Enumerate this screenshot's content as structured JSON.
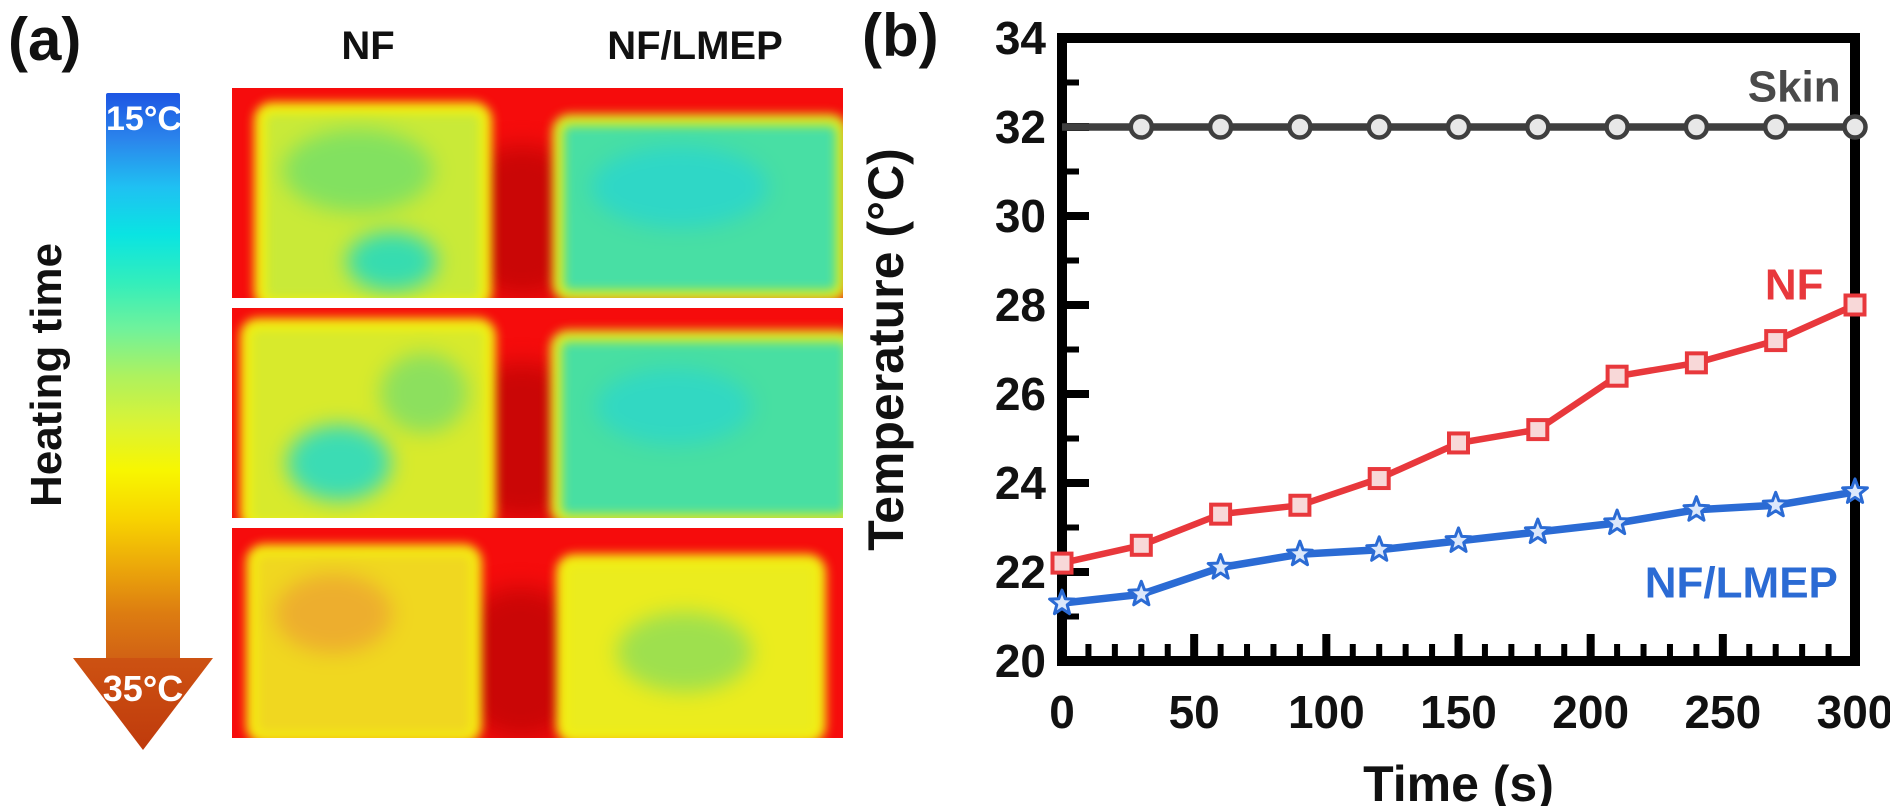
{
  "panel_a": {
    "label": "(a)",
    "column_titles": [
      "NF",
      "NF/LMEP"
    ],
    "colorbar": {
      "top_label": "15°C",
      "bottom_label": "35°C",
      "axis_label": "Heating time",
      "gradient": [
        "#1d55e3",
        "#2b86ec",
        "#1fc1f2",
        "#0ae4e2",
        "#32eebc",
        "#70f29b",
        "#aef25e",
        "#daf335",
        "#f8f600",
        "#f8d400",
        "#eca90a",
        "#dd7d11",
        "#d16114"
      ],
      "arrow_colors": [
        "#cd5212",
        "#bf3a0c"
      ]
    },
    "thermal_rows": [
      {
        "name": "heating-row-1",
        "background": "#f60c0c",
        "blob_color": "#c30505",
        "left": {
          "inner": "#c9ea38",
          "border": "#f2ee10",
          "spots": [
            {
              "color": "#82e160",
              "left": "8%",
              "top": "8%",
              "w": "70%",
              "h": "45%"
            },
            {
              "color": "#36dcb0",
              "left": "38%",
              "top": "64%",
              "w": "42%",
              "h": "32%"
            }
          ]
        },
        "right": {
          "inner": "#48dfa4",
          "border": "#d9ec22",
          "spots": [
            {
              "color": "#2fd7c6",
              "left": "10%",
              "top": "12%",
              "w": "65%",
              "h": "50%"
            }
          ]
        }
      },
      {
        "name": "heating-row-2",
        "background": "#f60c0c",
        "blob_color": "#c30505",
        "left": {
          "inner": "#d8ea2c",
          "border": "#f2ee10",
          "spots": [
            {
              "color": "#3bdcb4",
              "left": "15%",
              "top": "50%",
              "w": "45%",
              "h": "40%"
            },
            {
              "color": "#8ce05e",
              "left": "55%",
              "top": "12%",
              "w": "38%",
              "h": "42%"
            }
          ]
        },
        "right": {
          "inner": "#48dfa2",
          "border": "#dcec24",
          "spots": [
            {
              "color": "#32d8c2",
              "left": "12%",
              "top": "15%",
              "w": "55%",
              "h": "45%"
            }
          ]
        }
      },
      {
        "name": "heating-row-3",
        "background": "#f60c0c",
        "blob_color": "#c30505",
        "left": {
          "inner": "#f0d720",
          "border": "#f4ea12",
          "spots": [
            {
              "color": "#edae2e",
              "left": "8%",
              "top": "10%",
              "w": "55%",
              "h": "45%"
            }
          ]
        },
        "right": {
          "inner": "#ebec1e",
          "border": "#f2ee12",
          "spots": [
            {
              "color": "#9ee04e",
              "left": "20%",
              "top": "28%",
              "w": "55%",
              "h": "48%"
            }
          ]
        }
      }
    ]
  },
  "panel_b": {
    "label": "(b)"
  },
  "chart_data": {
    "type": "line",
    "title": "",
    "xlabel": "Time (s)",
    "ylabel": "Temperature (°C)",
    "xlim": [
      0,
      300
    ],
    "ylim": [
      20,
      34
    ],
    "x_major_ticks": [
      0,
      50,
      100,
      150,
      200,
      250,
      300
    ],
    "x_minor_step": 10,
    "y_major_ticks": [
      20,
      22,
      24,
      26,
      28,
      30,
      32,
      34
    ],
    "y_minor_step": 1,
    "grid": false,
    "legend_position": "inline-labels",
    "x": [
      0,
      30,
      60,
      90,
      120,
      150,
      180,
      210,
      240,
      270,
      300
    ],
    "series": [
      {
        "name": "Skin",
        "color": "#3f3f3f",
        "label_color": "#4a4a4a",
        "marker": "circle",
        "marker_fill": "#e8e8e8",
        "line_width": 7.5,
        "marker_start_index": 1,
        "values": [
          32,
          32,
          32,
          32,
          32,
          32,
          32,
          32,
          32,
          32,
          32
        ],
        "label_t": 277,
        "label_T": 32.9
      },
      {
        "name": "NF",
        "color": "#e8383c",
        "label_color": "#e8383c",
        "marker": "square",
        "marker_fill": "#f8d8d8",
        "line_width": 6.5,
        "marker_start_index": 0,
        "values": [
          22.2,
          22.6,
          23.3,
          23.5,
          24.1,
          24.9,
          25.2,
          26.4,
          26.7,
          27.2,
          28.0
        ],
        "label_t": 277,
        "label_T": 28.45
      },
      {
        "name": "NF/LMEP",
        "color": "#2b6bd4",
        "label_color": "#2b6bd4",
        "marker": "star",
        "marker_fill": "#dce8fb",
        "line_width": 7.5,
        "marker_start_index": 0,
        "values": [
          21.3,
          21.5,
          22.1,
          22.4,
          22.5,
          22.7,
          22.9,
          23.1,
          23.4,
          23.5,
          23.8
        ],
        "label_t": 257,
        "label_T": 21.75
      }
    ]
  }
}
